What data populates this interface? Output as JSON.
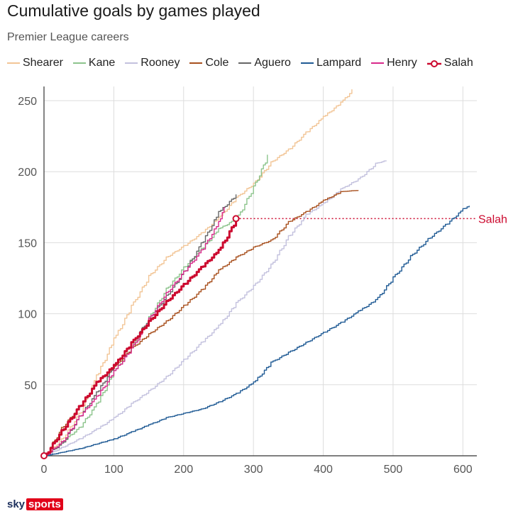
{
  "title": "Cumulative goals by games played",
  "subtitle": "Premier League careers",
  "brand": {
    "sky": "sky",
    "sports": "sports"
  },
  "chart_data": {
    "type": "line",
    "title": "Cumulative goals by games played",
    "subtitle": "Premier League careers",
    "xlabel": "",
    "ylabel": "",
    "xlim": [
      0,
      620
    ],
    "ylim": [
      0,
      260
    ],
    "xticks": [
      0,
      100,
      200,
      300,
      400,
      500,
      600
    ],
    "yticks": [
      50,
      100,
      150,
      200,
      250
    ],
    "grid": true,
    "legend_position": "top",
    "annotation": {
      "text": "Salah",
      "series": "Salah",
      "y": 167
    },
    "series": [
      {
        "name": "Shearer",
        "color": "#f2c596",
        "points": [
          [
            0,
            0
          ],
          [
            25,
            12
          ],
          [
            50,
            30
          ],
          [
            75,
            57
          ],
          [
            100,
            83
          ],
          [
            125,
            106
          ],
          [
            150,
            127
          ],
          [
            175,
            140
          ],
          [
            200,
            148
          ],
          [
            225,
            157
          ],
          [
            250,
            168
          ],
          [
            275,
            182
          ],
          [
            300,
            192
          ],
          [
            325,
            207
          ],
          [
            350,
            216
          ],
          [
            375,
            228
          ],
          [
            400,
            239
          ],
          [
            425,
            249
          ],
          [
            441,
            258
          ]
        ]
      },
      {
        "name": "Kane",
        "color": "#8cc48c",
        "points": [
          [
            0,
            0
          ],
          [
            25,
            10
          ],
          [
            50,
            20
          ],
          [
            75,
            37
          ],
          [
            100,
            60
          ],
          [
            125,
            77
          ],
          [
            150,
            98
          ],
          [
            175,
            118
          ],
          [
            200,
            133
          ],
          [
            225,
            146
          ],
          [
            250,
            160
          ],
          [
            275,
            167
          ],
          [
            300,
            190
          ],
          [
            320,
            212
          ]
        ]
      },
      {
        "name": "Rooney",
        "color": "#c3c1de",
        "points": [
          [
            0,
            0
          ],
          [
            25,
            6
          ],
          [
            50,
            12
          ],
          [
            75,
            19
          ],
          [
            100,
            27
          ],
          [
            125,
            37
          ],
          [
            150,
            46
          ],
          [
            175,
            56
          ],
          [
            200,
            68
          ],
          [
            225,
            80
          ],
          [
            250,
            92
          ],
          [
            275,
            108
          ],
          [
            300,
            120
          ],
          [
            325,
            135
          ],
          [
            350,
            155
          ],
          [
            375,
            170
          ],
          [
            400,
            178
          ],
          [
            425,
            188
          ],
          [
            450,
            195
          ],
          [
            475,
            206
          ],
          [
            490,
            208
          ]
        ]
      },
      {
        "name": "Cole",
        "color": "#a8501e",
        "points": [
          [
            0,
            0
          ],
          [
            25,
            20
          ],
          [
            50,
            35
          ],
          [
            75,
            52
          ],
          [
            100,
            63
          ],
          [
            125,
            76
          ],
          [
            150,
            86
          ],
          [
            175,
            95
          ],
          [
            200,
            106
          ],
          [
            225,
            117
          ],
          [
            250,
            131
          ],
          [
            275,
            140
          ],
          [
            300,
            147
          ],
          [
            325,
            152
          ],
          [
            350,
            165
          ],
          [
            375,
            172
          ],
          [
            400,
            180
          ],
          [
            425,
            186
          ],
          [
            450,
            187
          ]
        ]
      },
      {
        "name": "Aguero",
        "color": "#666666",
        "points": [
          [
            0,
            0
          ],
          [
            25,
            9
          ],
          [
            50,
            28
          ],
          [
            75,
            45
          ],
          [
            100,
            64
          ],
          [
            125,
            80
          ],
          [
            150,
            97
          ],
          [
            175,
            113
          ],
          [
            200,
            130
          ],
          [
            225,
            150
          ],
          [
            250,
            172
          ],
          [
            275,
            184
          ]
        ]
      },
      {
        "name": "Lampard",
        "color": "#1f5a94",
        "points": [
          [
            0,
            0
          ],
          [
            50,
            5
          ],
          [
            100,
            12
          ],
          [
            125,
            17
          ],
          [
            150,
            22
          ],
          [
            175,
            27
          ],
          [
            200,
            30
          ],
          [
            225,
            33
          ],
          [
            250,
            38
          ],
          [
            275,
            44
          ],
          [
            300,
            52
          ],
          [
            325,
            66
          ],
          [
            350,
            73
          ],
          [
            375,
            80
          ],
          [
            400,
            87
          ],
          [
            425,
            94
          ],
          [
            450,
            102
          ],
          [
            475,
            110
          ],
          [
            500,
            126
          ],
          [
            525,
            141
          ],
          [
            550,
            153
          ],
          [
            575,
            163
          ],
          [
            600,
            174
          ],
          [
            609,
            176
          ]
        ]
      },
      {
        "name": "Henry",
        "color": "#d8288a",
        "points": [
          [
            0,
            0
          ],
          [
            25,
            10
          ],
          [
            50,
            28
          ],
          [
            75,
            42
          ],
          [
            100,
            60
          ],
          [
            125,
            76
          ],
          [
            150,
            97
          ],
          [
            175,
            115
          ],
          [
            200,
            130
          ],
          [
            225,
            145
          ],
          [
            250,
            165
          ],
          [
            258,
            175
          ]
        ]
      },
      {
        "name": "Salah",
        "color": "#cc0a2f",
        "points": [
          [
            0,
            0
          ],
          [
            25,
            18
          ],
          [
            50,
            35
          ],
          [
            75,
            52
          ],
          [
            100,
            64
          ],
          [
            125,
            80
          ],
          [
            150,
            95
          ],
          [
            175,
            109
          ],
          [
            200,
            121
          ],
          [
            225,
            133
          ],
          [
            250,
            145
          ],
          [
            275,
            167
          ]
        ]
      }
    ]
  }
}
